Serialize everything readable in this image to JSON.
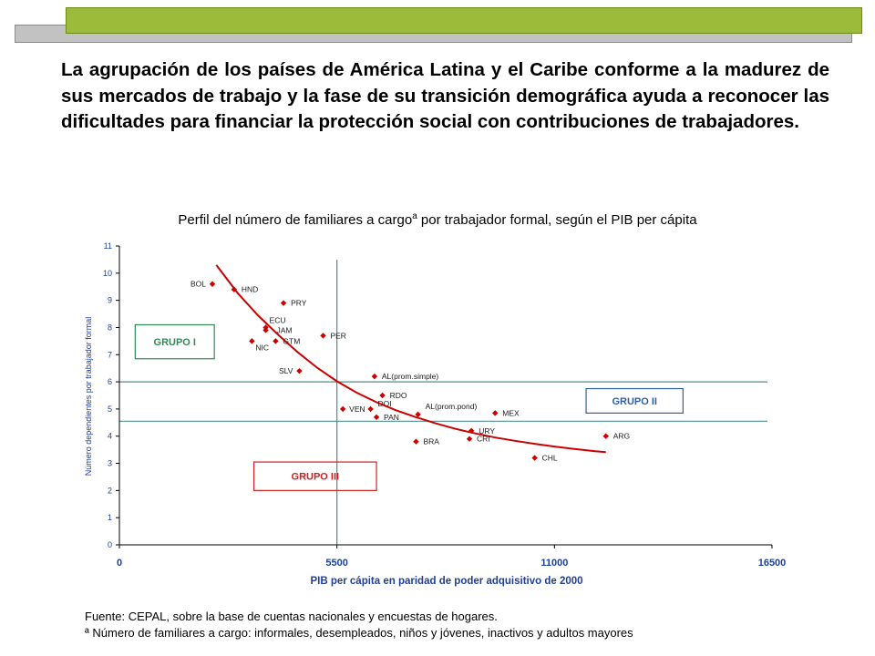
{
  "header": {
    "bar_color_green": "#9dbb3a",
    "bar_color_grey": "#c2c2c2"
  },
  "intro_text": "La agrupación de los países de América Latina y el Caribe conforme a la madurez de sus mercados de trabajo y la fase de su transición demográfica ayuda a reconocer las dificultades para financiar la protección social con contribuciones de trabajadores.",
  "chart_data": {
    "type": "scatter",
    "title_main": "Perfil del número de familiares a cargo",
    "title_sup": "a",
    "title_rest": " por trabajador formal, según el PIB per cápita",
    "xlabel": "PIB per cápita en paridad de poder adquisitivo de 2000",
    "ylabel": "Número dependientes por trabajador formal",
    "xlim": [
      0,
      16500
    ],
    "ylim": [
      0,
      11
    ],
    "xticks": [
      0,
      5500,
      11000,
      16500
    ],
    "yticks": [
      0,
      1,
      2,
      3,
      4,
      5,
      6,
      7,
      8,
      9,
      10,
      11
    ],
    "grid": false,
    "point_color": "#cc0000",
    "curve_color": "#cc0000",
    "reference_line_color": "#4f8f8f",
    "reference_lines": {
      "x": 5500,
      "y": [
        6.0,
        4.55
      ]
    },
    "points": [
      {
        "label": "BOL",
        "x": 2350,
        "y": 9.6
      },
      {
        "label": "HND",
        "x": 2900,
        "y": 9.4
      },
      {
        "label": "PRY",
        "x": 4150,
        "y": 8.9
      },
      {
        "label": "ECU",
        "x": 3700,
        "y": 8.0
      },
      {
        "label": "JAM",
        "x": 3700,
        "y": 7.9
      },
      {
        "label": "GTM",
        "x": 3950,
        "y": 7.5
      },
      {
        "label": "NIC",
        "x": 3350,
        "y": 7.5
      },
      {
        "label": "PER",
        "x": 5150,
        "y": 7.7
      },
      {
        "label": "SLV",
        "x": 4550,
        "y": 6.4
      },
      {
        "label": "AL(prom.simple)",
        "x": 6450,
        "y": 6.2
      },
      {
        "label": "RDO",
        "x": 6650,
        "y": 5.5
      },
      {
        "label": "VEN",
        "x": 5650,
        "y": 5.0
      },
      {
        "label": "DOI",
        "x": 6350,
        "y": 5.0
      },
      {
        "label": "PAN",
        "x": 6500,
        "y": 4.7
      },
      {
        "label": "AL(prom.pond)",
        "x": 7550,
        "y": 4.8
      },
      {
        "label": "MEX",
        "x": 9500,
        "y": 4.85
      },
      {
        "label": "URY",
        "x": 8900,
        "y": 4.2
      },
      {
        "label": "CRI",
        "x": 8850,
        "y": 3.9
      },
      {
        "label": "BRA",
        "x": 7500,
        "y": 3.8
      },
      {
        "label": "ARG",
        "x": 12300,
        "y": 4.0
      },
      {
        "label": "CHL",
        "x": 10500,
        "y": 3.2
      }
    ],
    "trend_curve": [
      [
        2450,
        10.3
      ],
      [
        3000,
        9.25
      ],
      [
        3500,
        8.45
      ],
      [
        4000,
        7.75
      ],
      [
        4500,
        7.1
      ],
      [
        5000,
        6.52
      ],
      [
        5500,
        6.02
      ],
      [
        6000,
        5.6
      ],
      [
        6500,
        5.25
      ],
      [
        7000,
        4.95
      ],
      [
        7500,
        4.7
      ],
      [
        8000,
        4.47
      ],
      [
        8500,
        4.27
      ],
      [
        9000,
        4.1
      ],
      [
        9500,
        3.95
      ],
      [
        10000,
        3.83
      ],
      [
        10500,
        3.72
      ],
      [
        11000,
        3.62
      ],
      [
        11500,
        3.53
      ],
      [
        12000,
        3.45
      ],
      [
        12300,
        3.41
      ]
    ],
    "annotations": [
      {
        "text": "GRUPO I",
        "x0": 400,
        "x1": 2400,
        "y0": 6.85,
        "y1": 8.1,
        "color": "#2e8b57"
      },
      {
        "text": "GRUPO II",
        "x0": 11800,
        "x1": 14250,
        "y0": 4.85,
        "y1": 5.75,
        "color": "#2f5fa7"
      },
      {
        "text": "GRUPO III",
        "x0": 3400,
        "x1": 6500,
        "y0": 2.0,
        "y1": 3.05,
        "color": "#cc2222"
      }
    ]
  },
  "footnotes": {
    "source": "Fuente: CEPAL, sobre la base de cuentas nacionales y encuestas de hogares.",
    "note": "ª Número de familiares a cargo: informales, desempleados, niños y jóvenes, inactivos y adultos mayores"
  }
}
